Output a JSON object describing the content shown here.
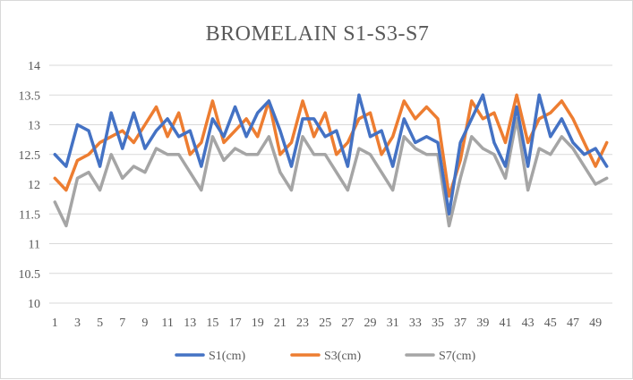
{
  "chart_data": {
    "type": "line",
    "title": "BROMELAIN  S1-S3-S7",
    "xlabel": "",
    "ylabel": "",
    "ylim": [
      10,
      14
    ],
    "y_ticks": [
      "10",
      "10.5",
      "11",
      "11.5",
      "12",
      "12.5",
      "13",
      "13.5",
      "14"
    ],
    "x": [
      1,
      2,
      3,
      4,
      5,
      6,
      7,
      8,
      9,
      10,
      11,
      12,
      13,
      14,
      15,
      16,
      17,
      18,
      19,
      20,
      21,
      22,
      23,
      24,
      25,
      26,
      27,
      28,
      29,
      30,
      31,
      32,
      33,
      34,
      35,
      36,
      37,
      38,
      39,
      40,
      41,
      42,
      43,
      44,
      45,
      46,
      47,
      48,
      49,
      50
    ],
    "x_tick_labels": [
      "1",
      "3",
      "5",
      "7",
      "9",
      "11",
      "13",
      "15",
      "17",
      "19",
      "21",
      "23",
      "25",
      "27",
      "29",
      "31",
      "33",
      "35",
      "37",
      "39",
      "41",
      "43",
      "45",
      "47",
      "49"
    ],
    "grid": true,
    "legend_position": "bottom",
    "series": [
      {
        "name": "S1(cm)",
        "color": "#4472C4",
        "values": [
          12.5,
          12.3,
          13.0,
          12.9,
          12.3,
          13.2,
          12.6,
          13.2,
          12.6,
          12.9,
          13.1,
          12.8,
          12.9,
          12.3,
          13.1,
          12.8,
          13.3,
          12.8,
          13.2,
          13.4,
          12.9,
          12.3,
          13.1,
          13.1,
          12.8,
          12.9,
          12.3,
          13.5,
          12.8,
          12.9,
          12.3,
          13.1,
          12.7,
          12.8,
          12.7,
          11.5,
          12.7,
          13.1,
          13.5,
          12.7,
          12.3,
          13.3,
          12.3,
          13.5,
          12.8,
          13.1,
          12.7,
          12.5,
          12.6,
          12.3
        ]
      },
      {
        "name": "S3(cm)",
        "color": "#ED7D31",
        "values": [
          12.1,
          11.9,
          12.4,
          12.5,
          12.7,
          12.8,
          12.9,
          12.7,
          13.0,
          13.3,
          12.8,
          13.2,
          12.5,
          12.7,
          13.4,
          12.7,
          12.9,
          13.1,
          12.8,
          13.4,
          12.5,
          12.7,
          13.4,
          12.8,
          13.2,
          12.5,
          12.7,
          13.1,
          13.2,
          12.5,
          12.8,
          13.4,
          13.1,
          13.3,
          13.1,
          11.8,
          12.4,
          13.4,
          13.1,
          13.2,
          12.7,
          13.5,
          12.7,
          13.1,
          13.2,
          13.4,
          13.1,
          12.7,
          12.3,
          12.7
        ]
      },
      {
        "name": "S7(cm)",
        "color": "#A5A5A5",
        "values": [
          11.7,
          11.3,
          12.1,
          12.2,
          11.9,
          12.5,
          12.1,
          12.3,
          12.2,
          12.6,
          12.5,
          12.5,
          12.2,
          11.9,
          12.8,
          12.4,
          12.6,
          12.5,
          12.5,
          12.8,
          12.2,
          11.9,
          12.8,
          12.5,
          12.5,
          12.2,
          11.9,
          12.6,
          12.5,
          12.2,
          11.9,
          12.8,
          12.6,
          12.5,
          12.5,
          11.3,
          12.1,
          12.8,
          12.6,
          12.5,
          12.1,
          13.1,
          11.9,
          12.6,
          12.5,
          12.8,
          12.6,
          12.3,
          12.0,
          12.1
        ]
      }
    ]
  }
}
